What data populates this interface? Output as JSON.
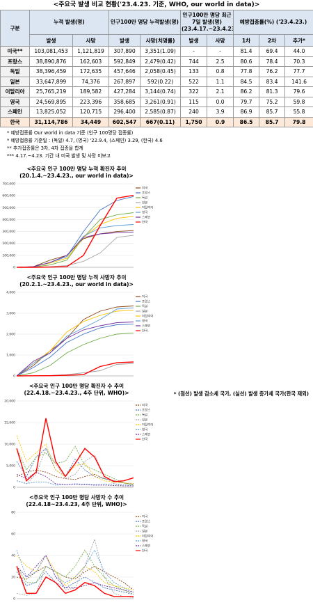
{
  "header": {
    "title": "<주요국 발생 비교 현황('23.4.23. 기준, WHO, our world in data)>"
  },
  "table": {
    "header_top": [
      "구분",
      "누적 발생(명)",
      "인구100만 명당 누적발생(명)",
      "인구100만 명당 최근 7일 발생(명) (23.4.17.~23.4.23.)",
      "예방접종률(%) ('23.4.23.)"
    ],
    "header_sub": [
      "발생",
      "사망",
      "발생",
      "사망(치명률)",
      "발생",
      "사망",
      "1차",
      "2차",
      "추가*"
    ],
    "rows": [
      [
        "미국**",
        "103,081,453",
        "1,121,819",
        "307,890",
        "3,351(1.09)",
        "-",
        "-",
        "81.4",
        "69.4",
        "44.0"
      ],
      [
        "프랑스",
        "38,890,876",
        "162,603",
        "592,849",
        "2,479(0.42)",
        "744",
        "2.5",
        "80.6",
        "78.4",
        "70.3"
      ],
      [
        "독일",
        "38,396,459",
        "172,635",
        "457,646",
        "2,058(0.45)",
        "133",
        "0.8",
        "77.8",
        "76.2",
        "77.7"
      ],
      [
        "일본",
        "33,647,899",
        "74,376",
        "267,897",
        "592(0.22)",
        "522",
        "1.1",
        "84.5",
        "83.4",
        "141.6"
      ],
      [
        "이탈리아",
        "25,765,219",
        "189,582",
        "427,284",
        "3,144(0.74)",
        "322",
        "2.1",
        "86.2",
        "81.3",
        "79.6"
      ],
      [
        "영국",
        "24,569,895",
        "223,396",
        "358,685",
        "3,261(0.91)",
        "115",
        "0.0",
        "79.7",
        "75.2",
        "59.8"
      ],
      [
        "스페인",
        "13,825,052",
        "120,715",
        "296,400",
        "2,585(0.87)",
        "240",
        "3.9",
        "86.9",
        "85.7",
        "55.8"
      ],
      [
        "한국",
        "31,114,786",
        "34,449",
        "602,547",
        "667(0.11)",
        "1,750",
        "0.9",
        "86.5",
        "85.7",
        "79.8"
      ]
    ]
  },
  "notes": [
    "* 예방접종률 Our world in data 기준 (인구 100명당 접종률)",
    "* 예방접종률 기준일 : (독일) 4.7, (영국) '22.9.4, (스페인) 3.29, (한국) 4.6",
    "** 추가접종률은 3차, 4차 접종을 합계",
    "*** 4.17.~4.23. 기간 내 미국 발생 및 사망 미보고"
  ],
  "charts": [
    {
      "type": "line",
      "title": "<주요국 인구 100만 명당 누적 확진자 추이",
      "subtitle": "(20.1.4.~23.4.23., our world in data)>",
      "ylim": [
        0,
        700000
      ],
      "yticks": [
        0,
        {
          "value": 100000,
          "label": "100,000"
        },
        {
          "value": 200000,
          "label": "200,000"
        },
        {
          "value": 300000,
          "label": "300,000"
        },
        {
          "value": 400000,
          "label": "400,000"
        },
        {
          "value": 500000,
          "label": "500,000"
        },
        {
          "value": 600000,
          "label": "600,000"
        },
        {
          "value": 700000,
          "label": "700,000"
        }
      ],
      "series": [
        {
          "name": "미국",
          "color": "#8b4513",
          "values": [
            0,
            5000,
            60000,
            100000,
            240000,
            280000,
            300000,
            308000
          ]
        },
        {
          "name": "프랑스",
          "color": "#4472c4",
          "values": [
            0,
            3000,
            40000,
            90000,
            300000,
            480000,
            560000,
            593000
          ]
        },
        {
          "name": "독일",
          "color": "#70ad47",
          "values": [
            0,
            2000,
            20000,
            60000,
            250000,
            400000,
            440000,
            458000
          ]
        },
        {
          "name": "일본",
          "color": "#a5a5a5",
          "values": [
            0,
            100,
            5000,
            14000,
            50000,
            120000,
            250000,
            268000
          ]
        },
        {
          "name": "이탈리아",
          "color": "#ffc000",
          "values": [
            0,
            4000,
            35000,
            75000,
            250000,
            360000,
            410000,
            427000
          ]
        },
        {
          "name": "영국",
          "color": "#5b9bd5",
          "values": [
            0,
            3000,
            40000,
            90000,
            260000,
            330000,
            350000,
            359000
          ]
        },
        {
          "name": "스페인",
          "color": "#7030a0",
          "values": [
            0,
            5000,
            40000,
            100000,
            250000,
            280000,
            290000,
            296000
          ]
        },
        {
          "name": "한국",
          "color": "#ff0000",
          "values": [
            0,
            200,
            1500,
            5000,
            100000,
            350000,
            580000,
            603000
          ]
        }
      ]
    },
    {
      "type": "line",
      "title": "<주요국 인구 100만 명당 누적 사망자 추이",
      "subtitle": "(20.2.1.~23.4.23., our world in data)>",
      "ylim": [
        0,
        4000
      ],
      "yticks": [
        0,
        {
          "value": 1000,
          "label": "1,000"
        },
        {
          "value": 2000,
          "label": "2,000"
        },
        {
          "value": 3000,
          "label": "3,000"
        },
        {
          "value": 4000,
          "label": "4,000"
        }
      ],
      "series": [
        {
          "name": "미국",
          "color": "#8b4513",
          "values": [
            0,
            500,
            1200,
            1800,
            2700,
            3100,
            3300,
            3351
          ]
        },
        {
          "name": "프랑스",
          "color": "#4472c4",
          "values": [
            0,
            400,
            900,
            1600,
            2000,
            2300,
            2450,
            2479
          ]
        },
        {
          "name": "독일",
          "color": "#70ad47",
          "values": [
            0,
            150,
            500,
            1100,
            1500,
            1800,
            2000,
            2058
          ]
        },
        {
          "name": "일본",
          "color": "#a5a5a5",
          "values": [
            0,
            5,
            20,
            60,
            150,
            250,
            550,
            592
          ]
        },
        {
          "name": "이탈리아",
          "color": "#ffc000",
          "values": [
            0,
            600,
            1200,
            2100,
            2600,
            2900,
            3100,
            3144
          ]
        },
        {
          "name": "영국",
          "color": "#5b9bd5",
          "values": [
            0,
            600,
            1100,
            1900,
            2300,
            2700,
            3200,
            3261
          ]
        },
        {
          "name": "스페인",
          "color": "#7030a0",
          "values": [
            0,
            700,
            1100,
            1800,
            2200,
            2400,
            2550,
            2585
          ]
        },
        {
          "name": "한국",
          "color": "#ff0000",
          "values": [
            0,
            5,
            10,
            30,
            60,
            450,
            630,
            667
          ]
        }
      ]
    },
    {
      "type": "line",
      "title": "<주요국 인구 100만 명당 확진자 수 추이",
      "subtitle": "(22.4.18.~23.4.23., 4주 단위, WHO)>",
      "ylim": [
        0,
        20000
      ],
      "yticks": [
        0,
        {
          "value": 5000,
          "label": "5,000"
        },
        {
          "value": 10000,
          "label": "10,000"
        },
        {
          "value": 15000,
          "label": "15,000"
        },
        {
          "value": 20000,
          "label": "20,000"
        }
      ],
      "series": [
        {
          "name": "미국",
          "color": "#8b4513",
          "dashed": true,
          "values": [
            2500,
            3500,
            4000,
            3500,
            2500,
            2000,
            1800,
            2500,
            3000,
            2000,
            1500,
            1000,
            600
          ]
        },
        {
          "name": "프랑스",
          "color": "#4472c4",
          "dashed": true,
          "values": [
            6000,
            2500,
            7000,
            9000,
            4000,
            2500,
            6500,
            4000,
            2500,
            2000,
            1500,
            1000,
            800
          ]
        },
        {
          "name": "독일",
          "color": "#70ad47",
          "dashed": true,
          "values": [
            9000,
            4000,
            7000,
            8000,
            5500,
            6000,
            9500,
            5000,
            4000,
            3000,
            2000,
            1000,
            500
          ]
        },
        {
          "name": "일본",
          "color": "#a5a5a5",
          "dashed": true,
          "values": [
            1500,
            800,
            3000,
            9000,
            5500,
            2000,
            3000,
            6000,
            7500,
            2500,
            800,
            300,
            300
          ]
        },
        {
          "name": "이탈리아",
          "color": "#ffc000",
          "dashed": true,
          "values": [
            12000,
            6000,
            8000,
            10000,
            4000,
            2500,
            5000,
            5500,
            2500,
            1500,
            1200,
            1000,
            900
          ]
        },
        {
          "name": "영국",
          "color": "#5b9bd5",
          "dashed": true,
          "values": [
            1500,
            900,
            1200,
            1200,
            500,
            600,
            800,
            700,
            600,
            700,
            800,
            600,
            300
          ]
        },
        {
          "name": "스페인",
          "color": "#7030a0",
          "dashed": true,
          "values": [
            3000,
            2000,
            3500,
            2500,
            800,
            600,
            700,
            600,
            500,
            500,
            400,
            300,
            300
          ]
        },
        {
          "name": "한국",
          "color": "#ff0000",
          "values": [
            9000,
            1500,
            3500,
            16000,
            6000,
            2500,
            5500,
            9000,
            7000,
            2500,
            1300,
            1500,
            2200
          ]
        }
      ]
    },
    {
      "type": "line",
      "title": "<주요국 인구 100만 명당 사망자 수 추이",
      "subtitle": "(22.4.18~23.4.23, 4주 단위, WHO)>",
      "ylim": [
        0,
        80
      ],
      "yticks": [
        0,
        20,
        40,
        60,
        80
      ],
      "series": [
        {
          "name": "미국",
          "color": "#8b4513",
          "dashed": true,
          "values": [
            20,
            18,
            25,
            30,
            25,
            20,
            18,
            25,
            30,
            25,
            20,
            15,
            8
          ]
        },
        {
          "name": "프랑스",
          "color": "#4472c4",
          "dashed": true,
          "values": [
            25,
            12,
            15,
            25,
            15,
            10,
            15,
            20,
            15,
            10,
            8,
            6,
            4
          ]
        },
        {
          "name": "독일",
          "color": "#70ad47",
          "dashed": true,
          "values": [
            30,
            15,
            15,
            30,
            25,
            20,
            30,
            45,
            30,
            20,
            12,
            8,
            4
          ]
        },
        {
          "name": "일본",
          "color": "#a5a5a5",
          "dashed": true,
          "values": [
            5,
            3,
            5,
            30,
            25,
            8,
            10,
            30,
            55,
            20,
            5,
            2,
            1
          ]
        },
        {
          "name": "이탈리아",
          "color": "#ffc000",
          "dashed": true,
          "values": [
            40,
            30,
            25,
            40,
            25,
            12,
            20,
            30,
            25,
            15,
            12,
            10,
            8
          ]
        },
        {
          "name": "영국",
          "color": "#5b9bd5",
          "dashed": true,
          "values": [
            45,
            20,
            25,
            40,
            20,
            15,
            20,
            30,
            45,
            25,
            15,
            10,
            6
          ]
        },
        {
          "name": "스페인",
          "color": "#7030a0",
          "dashed": true,
          "values": [
            30,
            20,
            30,
            40,
            20,
            10,
            10,
            12,
            15,
            12,
            10,
            8,
            6
          ]
        },
        {
          "name": "한국",
          "color": "#ff0000",
          "values": [
            30,
            5,
            5,
            20,
            15,
            5,
            8,
            15,
            12,
            5,
            2,
            2,
            2
          ]
        }
      ]
    }
  ],
  "footer_note": "* (점선) 발생 감소세 국가, (실선) 발생 증가세 국가(한국 제외)"
}
